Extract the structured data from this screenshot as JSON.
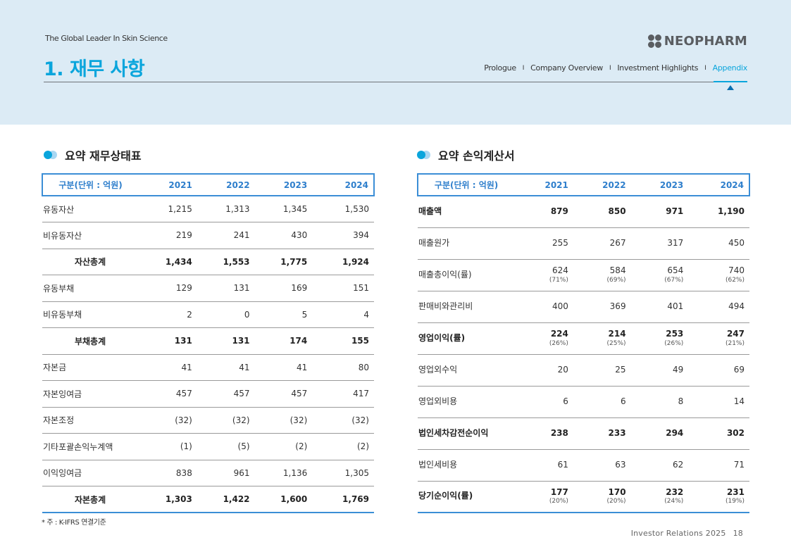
{
  "header": {
    "tagline": "The Global Leader In Skin Science",
    "title": "1. 재무 사항",
    "logo_text": "NEOPHARM",
    "nav": [
      "Prologue",
      "Company Overview",
      "Investment Highlights",
      "Appendix"
    ],
    "nav_separator": "I",
    "active_nav": "Appendix"
  },
  "balance_sheet": {
    "heading": "요약 재무상태표",
    "columns": [
      "구분(단위 : 억원)",
      "2021",
      "2022",
      "2023",
      "2024"
    ],
    "rows": [
      {
        "label": "유동자산",
        "values": [
          "1,215",
          "1,313",
          "1,345",
          "1,530"
        ]
      },
      {
        "label": "비유동자산",
        "values": [
          "219",
          "241",
          "430",
          "394"
        ]
      },
      {
        "label": "자산총계",
        "values": [
          "1,434",
          "1,553",
          "1,775",
          "1,924"
        ]
      },
      {
        "label": "유동부채",
        "values": [
          "129",
          "131",
          "169",
          "151"
        ]
      },
      {
        "label": "비유동부채",
        "values": [
          "2",
          "0",
          "5",
          "4"
        ]
      },
      {
        "label": "부채총계",
        "values": [
          "131",
          "131",
          "174",
          "155"
        ]
      },
      {
        "label": "자본금",
        "values": [
          "41",
          "41",
          "41",
          "80"
        ]
      },
      {
        "label": "자본잉여금",
        "values": [
          "457",
          "457",
          "457",
          "417"
        ]
      },
      {
        "label": "자본조정",
        "values": [
          "(32)",
          "(32)",
          "(32)",
          "(32)"
        ]
      },
      {
        "label": "기타포괄손익누계액",
        "values": [
          "(1)",
          "(5)",
          "(2)",
          "(2)"
        ]
      },
      {
        "label": "이익잉여금",
        "values": [
          "838",
          "961",
          "1,136",
          "1,305"
        ]
      },
      {
        "label": "자본총계",
        "values": [
          "1,303",
          "1,422",
          "1,600",
          "1,769"
        ]
      }
    ]
  },
  "income_statement": {
    "heading": "요약 손익계산서",
    "columns": [
      "구분(단위 : 억원)",
      "2021",
      "2022",
      "2023",
      "2024"
    ],
    "rows": [
      {
        "label": "매출액",
        "values": [
          "879",
          "850",
          "971",
          "1,190"
        ],
        "pcts": []
      },
      {
        "label": "매출원가",
        "values": [
          "255",
          "267",
          "317",
          "450"
        ],
        "pcts": []
      },
      {
        "label": "매출총이익(률)",
        "values": [
          "624",
          "584",
          "654",
          "740"
        ],
        "pcts": [
          "(71%)",
          "(69%)",
          "(67%)",
          "(62%)"
        ]
      },
      {
        "label": "판매비와관리비",
        "values": [
          "400",
          "369",
          "401",
          "494"
        ],
        "pcts": []
      },
      {
        "label": "영업이익(률)",
        "values": [
          "224",
          "214",
          "253",
          "247"
        ],
        "pcts": [
          "(26%)",
          "(25%)",
          "(26%)",
          "(21%)"
        ]
      },
      {
        "label": "영업외수익",
        "values": [
          "20",
          "25",
          "49",
          "69"
        ],
        "pcts": []
      },
      {
        "label": "영업외비용",
        "values": [
          "6",
          "6",
          "8",
          "14"
        ],
        "pcts": []
      },
      {
        "label": "법인세차감전순이익",
        "values": [
          "238",
          "233",
          "294",
          "302"
        ],
        "pcts": []
      },
      {
        "label": "법인세비용",
        "values": [
          "61",
          "63",
          "62",
          "71"
        ],
        "pcts": []
      },
      {
        "label": "당기순이익(률)",
        "values": [
          "177",
          "170",
          "232",
          "231"
        ],
        "pcts": [
          "(20%)",
          "(20%)",
          "(24%)",
          "(19%)"
        ]
      }
    ]
  },
  "footnote": "* 주 : K-IFRS 연결기준",
  "footer": {
    "label": "Investor Relations 2025",
    "page": "18"
  },
  "colors": {
    "accent": "#0aa5dc",
    "table_border": "#3b8ed6",
    "header_band": "#dcebf5"
  }
}
